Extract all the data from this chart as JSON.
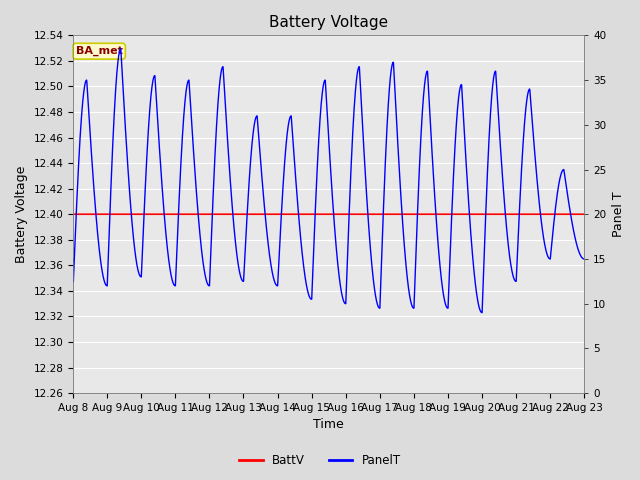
{
  "title": "Battery Voltage",
  "xlabel": "Time",
  "ylabel_left": "Battery Voltage",
  "ylabel_right": "Panel T",
  "annotation_text": "BA_met",
  "annotation_color": "#8B0000",
  "annotation_bg": "#FFFACD",
  "annotation_border": "#CCCC00",
  "xtick_labels": [
    "Aug 8",
    "Aug 9",
    "Aug 10",
    "Aug 11",
    "Aug 12",
    "Aug 13",
    "Aug 14",
    "Aug 15",
    "Aug 16",
    "Aug 17",
    "Aug 18",
    "Aug 19",
    "Aug 20",
    "Aug 21",
    "Aug 22",
    "Aug 23"
  ],
  "ylim_left": [
    12.26,
    12.54
  ],
  "ylim_right": [
    0,
    40
  ],
  "battv_value": 12.4,
  "battv_color": "#FF0000",
  "panelt_color": "#0000FF",
  "bg_color": "#DCDCDC",
  "plot_bg_color": "#E8E8E8",
  "legend_battv": "BattV",
  "legend_panelt": "PanelT",
  "title_fontsize": 11,
  "axis_fontsize": 9,
  "tick_fontsize": 7.5
}
